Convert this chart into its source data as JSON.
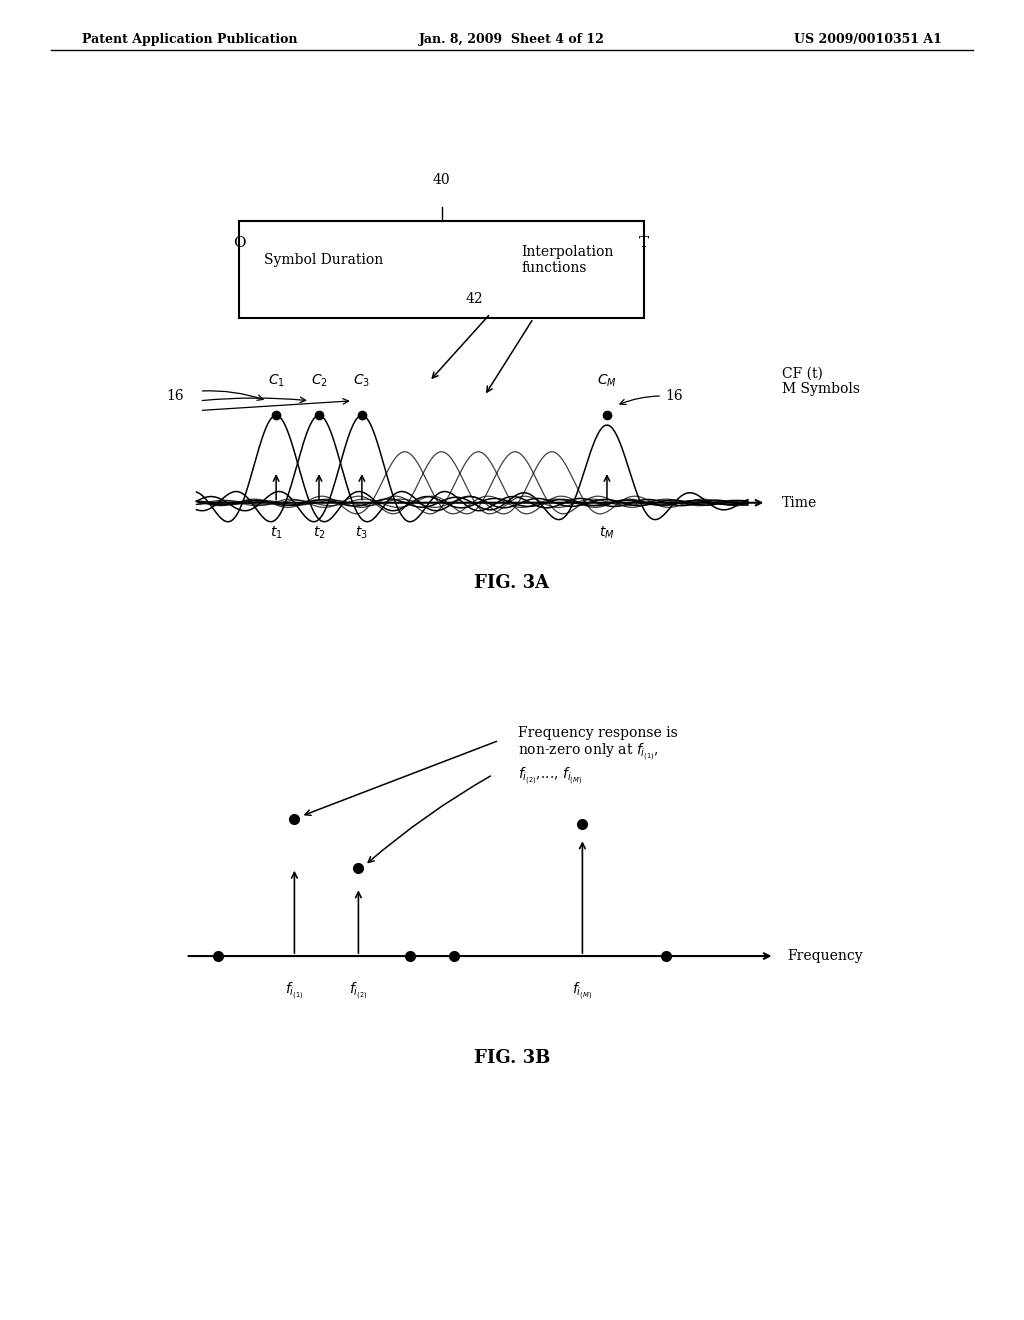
{
  "header_left": "Patent Application Publication",
  "header_mid": "Jan. 8, 2009  Sheet 4 of 12",
  "header_right": "US 2009/0010351 A1",
  "fig3a_label": "FIG. 3A",
  "fig3b_label": "FIG. 3B",
  "bg_color": "#ffffff",
  "text_color": "#000000"
}
